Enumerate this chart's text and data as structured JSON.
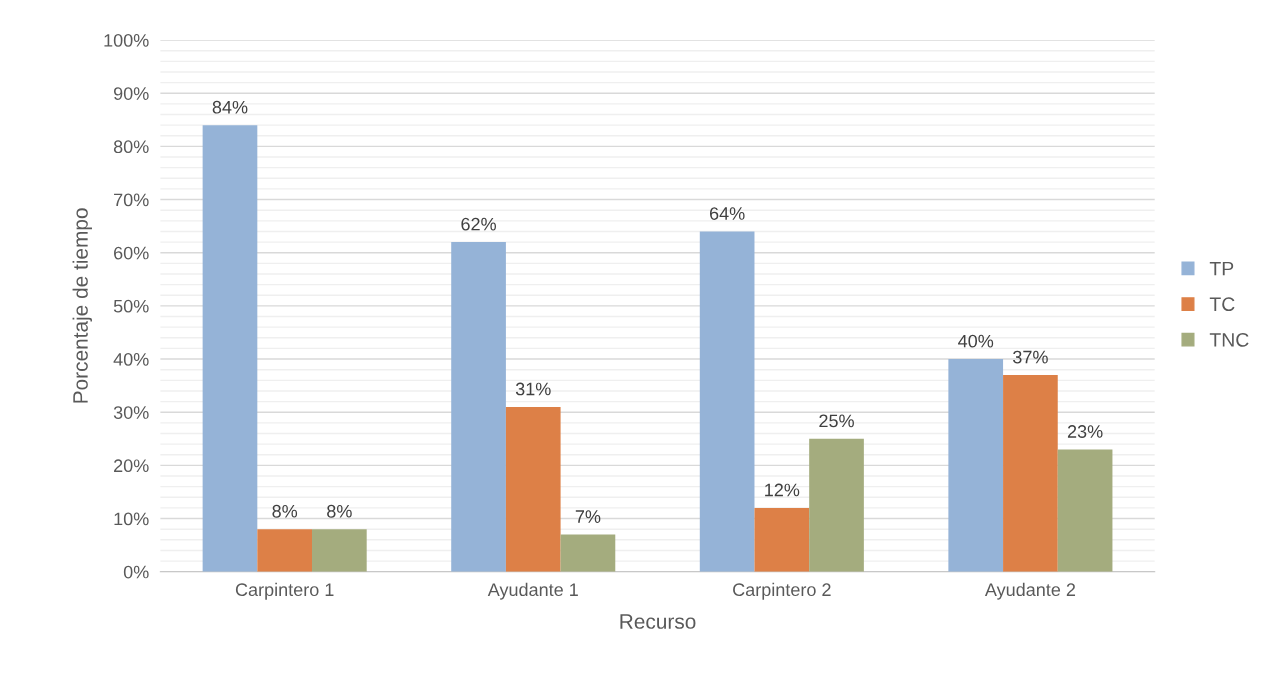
{
  "chart_data": {
    "type": "bar",
    "xlabel": "Recurso",
    "ylabel": "Porcentaje de tiempo",
    "categories": [
      "Carpintero 1",
      "Ayudante 1",
      "Carpintero 2",
      "Ayudante 2"
    ],
    "series": [
      {
        "name": "TP",
        "color": "#95b3d7",
        "values": [
          84,
          62,
          64,
          40
        ],
        "value_labels": [
          "84%",
          "62%",
          "64%",
          "40%"
        ]
      },
      {
        "name": "TC",
        "color": "#dd8047",
        "values": [
          8,
          31,
          12,
          37
        ],
        "value_labels": [
          "8%",
          "31%",
          "12%",
          "37%"
        ]
      },
      {
        "name": "TNC",
        "color": "#a4ac7e",
        "values": [
          8,
          7,
          25,
          23
        ],
        "value_labels": [
          "8%",
          "7%",
          "25%",
          "23%"
        ]
      }
    ],
    "ylim": [
      0,
      100
    ],
    "yticks": [
      {
        "value": 0,
        "label": "0%"
      },
      {
        "value": 2,
        "label": null
      },
      {
        "value": 4,
        "label": null
      },
      {
        "value": 6,
        "label": null
      },
      {
        "value": 8,
        "label": null
      },
      {
        "value": 10,
        "label": "10%"
      },
      {
        "value": 12,
        "label": null
      },
      {
        "value": 14,
        "label": null
      },
      {
        "value": 16,
        "label": null
      },
      {
        "value": 18,
        "label": null
      },
      {
        "value": 20,
        "label": "20%"
      },
      {
        "value": 22,
        "label": null
      },
      {
        "value": 24,
        "label": null
      },
      {
        "value": 26,
        "label": null
      },
      {
        "value": 28,
        "label": null
      },
      {
        "value": 30,
        "label": "30%"
      },
      {
        "value": 32,
        "label": null
      },
      {
        "value": 34,
        "label": null
      },
      {
        "value": 36,
        "label": null
      },
      {
        "value": 38,
        "label": null
      },
      {
        "value": 40,
        "label": "40%"
      },
      {
        "value": 42,
        "label": null
      },
      {
        "value": 44,
        "label": null
      },
      {
        "value": 46,
        "label": null
      },
      {
        "value": 48,
        "label": null
      },
      {
        "value": 50,
        "label": "50%"
      },
      {
        "value": 52,
        "label": null
      },
      {
        "value": 54,
        "label": null
      },
      {
        "value": 56,
        "label": null
      },
      {
        "value": 58,
        "label": null
      },
      {
        "value": 60,
        "label": "60%"
      },
      {
        "value": 62,
        "label": null
      },
      {
        "value": 64,
        "label": null
      },
      {
        "value": 66,
        "label": null
      },
      {
        "value": 68,
        "label": null
      },
      {
        "value": 70,
        "label": "70%"
      },
      {
        "value": 72,
        "label": null
      },
      {
        "value": 74,
        "label": null
      },
      {
        "value": 76,
        "label": null
      },
      {
        "value": 78,
        "label": null
      },
      {
        "value": 80,
        "label": "80%"
      },
      {
        "value": 82,
        "label": null
      },
      {
        "value": 84,
        "label": null
      },
      {
        "value": 86,
        "label": null
      },
      {
        "value": 88,
        "label": null
      },
      {
        "value": 90,
        "label": "90%"
      },
      {
        "value": 92,
        "label": null
      },
      {
        "value": 94,
        "label": null
      },
      {
        "value": 96,
        "label": null
      },
      {
        "value": 98,
        "label": null
      },
      {
        "value": 100,
        "label": "100%"
      }
    ],
    "grid": "y",
    "legend": "right"
  }
}
